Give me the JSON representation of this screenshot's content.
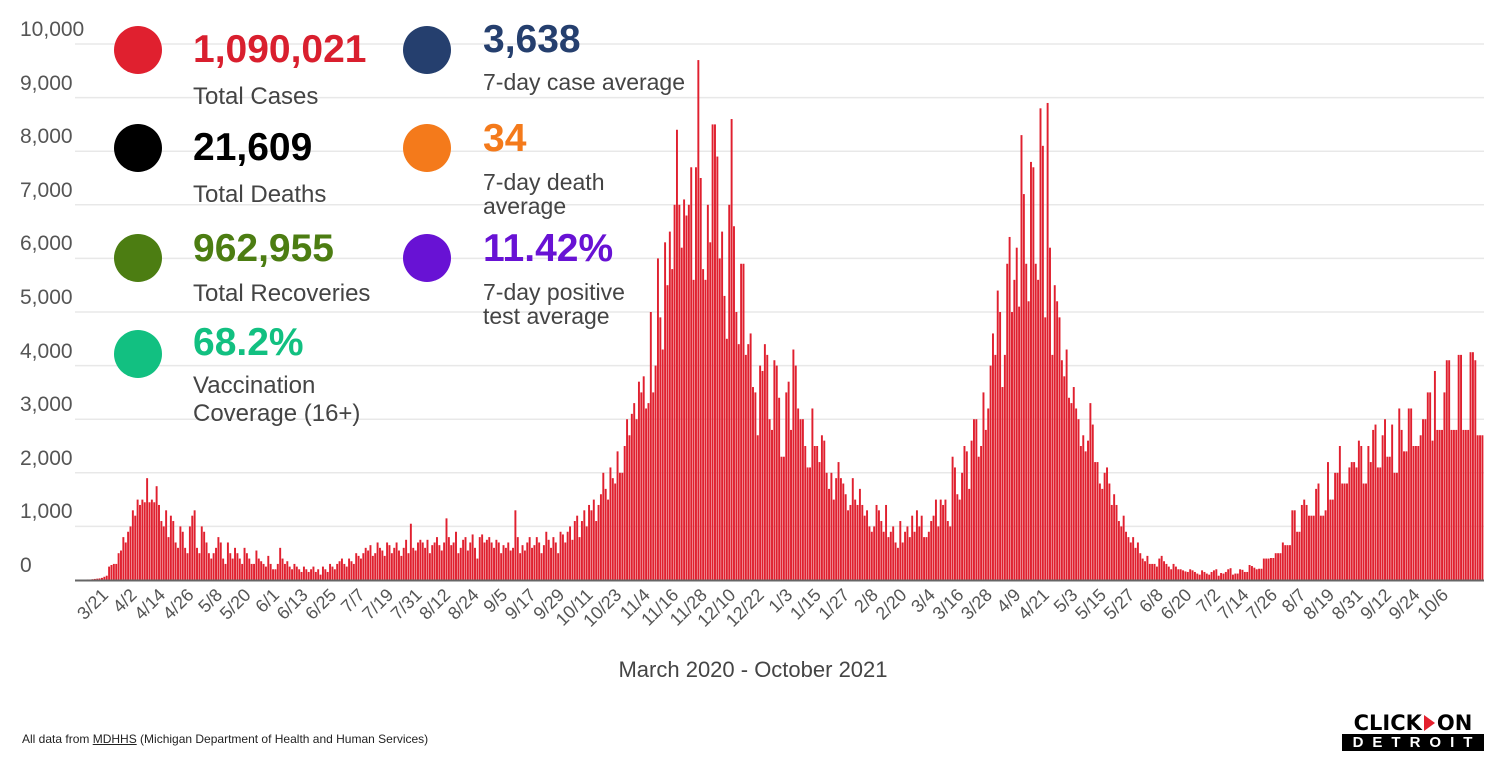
{
  "stats": {
    "total_cases": {
      "value": "1,090,021",
      "label": "Total Cases",
      "color": "#d91f2e"
    },
    "total_deaths": {
      "value": "21,609",
      "label": "Total Deaths",
      "color": "#000000"
    },
    "total_recoveries": {
      "value": "962,955",
      "label": "Total Recoveries",
      "color": "#4c7d12"
    },
    "vaccination": {
      "value": "68.2%",
      "label_line1": "Vaccination",
      "label_line2": "Coverage (16+)",
      "color": "#12c081"
    },
    "case_average": {
      "value": "3,638",
      "label": "7-day case average",
      "color": "#253f6e"
    },
    "death_average": {
      "value": "34",
      "label_line1": "7-day death",
      "label_line2": "average",
      "color": "#f47a1b"
    },
    "positive_average": {
      "value": "11.42%",
      "label_line1": "7-day positive",
      "label_line2": "test average",
      "color": "#6812d4"
    }
  },
  "chart_data": {
    "type": "bar",
    "bar_color": "#e0202f",
    "xlabel": "March 2020 - October 2021",
    "ylim": [
      0,
      10000
    ],
    "y_ticks": [
      "0",
      "1,000",
      "2,000",
      "3,000",
      "4,000",
      "5,000",
      "6,000",
      "7,000",
      "8,000",
      "9,000",
      "10,000"
    ],
    "grid": true,
    "values_before_first_tick": [
      0,
      0,
      10,
      10,
      15,
      20,
      25,
      30,
      40,
      60,
      80
    ],
    "blocks": [
      {
        "tick": "3/21",
        "values": [
          250,
          280,
          300,
          300,
          500,
          550,
          800,
          700,
          900,
          1000,
          1300,
          1200
        ]
      },
      {
        "tick": "4/2",
        "values": [
          1500,
          1400,
          1500,
          1450,
          1900,
          1450,
          1500,
          1450,
          1750,
          1400,
          1100,
          1000
        ]
      },
      {
        "tick": "4/14",
        "values": [
          1300,
          800,
          1200,
          1100,
          700,
          600,
          1000,
          900,
          600,
          500,
          1000,
          1200
        ]
      },
      {
        "tick": "4/26",
        "values": [
          1300,
          600,
          500,
          1000,
          900,
          700,
          500,
          400,
          500,
          600,
          800,
          700
        ]
      },
      {
        "tick": "5/8",
        "values": [
          400,
          300,
          700,
          500,
          400,
          600,
          500,
          400,
          300,
          600,
          500,
          400
        ]
      },
      {
        "tick": "5/20",
        "values": [
          300,
          300,
          550,
          400,
          350,
          300,
          250,
          450,
          300,
          200,
          200,
          300
        ]
      },
      {
        "tick": "6/1",
        "values": [
          600,
          400,
          300,
          350,
          250,
          200,
          300,
          250,
          200,
          150,
          250,
          200
        ]
      },
      {
        "tick": "6/13",
        "values": [
          150,
          200,
          250,
          150,
          200,
          100,
          250,
          200,
          150,
          300,
          250,
          200
        ]
      },
      {
        "tick": "6/25",
        "values": [
          300,
          350,
          400,
          300,
          250,
          400,
          350,
          300,
          500,
          450,
          400,
          500
        ]
      },
      {
        "tick": "7/7",
        "values": [
          600,
          550,
          650,
          450,
          500,
          700,
          600,
          550,
          450,
          700,
          650,
          500
        ]
      },
      {
        "tick": "7/19",
        "values": [
          600,
          700,
          550,
          450,
          600,
          750,
          500,
          1050,
          600,
          550,
          700,
          750
        ]
      },
      {
        "tick": "7/31",
        "values": [
          700,
          600,
          750,
          500,
          650,
          700,
          800,
          650,
          550,
          700,
          1150,
          800
        ]
      },
      {
        "tick": "8/12",
        "values": [
          650,
          700,
          900,
          500,
          600,
          750,
          800,
          550,
          700,
          850,
          600,
          400
        ]
      },
      {
        "tick": "8/24",
        "values": [
          800,
          850,
          700,
          750,
          800,
          700,
          600,
          750,
          700,
          500,
          650,
          600
        ]
      },
      {
        "tick": "9/5",
        "values": [
          700,
          550,
          600,
          1300,
          800,
          500,
          650,
          550,
          700,
          800,
          600,
          650
        ]
      },
      {
        "tick": "9/17",
        "values": [
          800,
          700,
          500,
          650,
          900,
          750,
          600,
          800,
          700,
          500,
          900,
          850
        ]
      },
      {
        "tick": "9/29",
        "values": [
          700,
          900,
          1000,
          750,
          1100,
          1200,
          800,
          1100,
          1300,
          1000,
          1400,
          1300
        ]
      },
      {
        "tick": "10/11",
        "values": [
          1500,
          1100,
          1400,
          1600,
          2000,
          1700,
          1500,
          2100,
          1900,
          1800,
          2400,
          2000
        ]
      },
      {
        "tick": "10/23",
        "values": [
          2000,
          2500,
          3000,
          2700,
          3100,
          3300,
          3000,
          3700,
          3500,
          3800,
          3200,
          3300
        ]
      },
      {
        "tick": "11/4",
        "values": [
          5000,
          3500,
          4000,
          6000,
          4900,
          4300,
          6300,
          5500,
          6500,
          5800,
          7000,
          8400
        ]
      },
      {
        "tick": "11/16",
        "values": [
          7000,
          6200,
          7100,
          6800,
          7000,
          7700,
          5600,
          7700,
          9700,
          7500,
          5800,
          5600
        ]
      },
      {
        "tick": "11/28",
        "values": [
          7000,
          6300,
          8500,
          8500,
          7900,
          6000,
          6500,
          5300,
          4500,
          7000,
          8600,
          6600
        ]
      },
      {
        "tick": "12/10",
        "values": [
          5000,
          4400,
          5900,
          5900,
          4200,
          4400,
          4600,
          3600,
          3500,
          2700,
          4000,
          3900
        ]
      },
      {
        "tick": "12/22",
        "values": [
          4400,
          4200,
          3000,
          2800,
          4100,
          4000,
          3400,
          2300,
          2300,
          3500,
          3700,
          2800
        ]
      },
      {
        "tick": "1/3",
        "values": [
          4300,
          4000,
          3200,
          3000,
          3000,
          2500,
          2100,
          2100,
          3200,
          2500,
          2500,
          2200
        ]
      },
      {
        "tick": "1/15",
        "values": [
          2700,
          2600,
          2000,
          1700,
          2000,
          1500,
          1900,
          2200,
          1900,
          1800,
          1600,
          1300
        ]
      },
      {
        "tick": "1/27",
        "values": [
          1400,
          1900,
          1500,
          1400,
          1700,
          1400,
          1200,
          1300,
          1000,
          900,
          1000,
          1400
        ]
      },
      {
        "tick": "2/8",
        "values": [
          1300,
          1100,
          900,
          1400,
          800,
          900,
          1000,
          700,
          600,
          1100,
          700,
          900
        ]
      },
      {
        "tick": "2/20",
        "values": [
          1000,
          800,
          1200,
          900,
          1300,
          1000,
          1200,
          800,
          800,
          900,
          1100,
          1200
        ]
      },
      {
        "tick": "3/4",
        "values": [
          1500,
          1000,
          1500,
          1400,
          1500,
          1100,
          1000,
          2300,
          2100,
          1600,
          1500,
          2000
        ]
      },
      {
        "tick": "3/16",
        "values": [
          2500,
          2400,
          1700,
          2600,
          3000,
          3000,
          2300,
          2500,
          3500,
          2800,
          3200,
          4000
        ]
      },
      {
        "tick": "3/28",
        "values": [
          4600,
          4200,
          5400,
          5000,
          3600,
          4200,
          5900,
          6400,
          5000,
          5600,
          6200,
          5100
        ]
      },
      {
        "tick": "4/9",
        "values": [
          8300,
          7200,
          5900,
          5200,
          7800,
          7700,
          5900,
          5600,
          8800,
          8100,
          4900,
          8900
        ]
      },
      {
        "tick": "4/21",
        "values": [
          6200,
          4200,
          5500,
          5200,
          4900,
          4100,
          3800,
          4300,
          3400,
          3300,
          3600,
          3200
        ]
      },
      {
        "tick": "5/3",
        "values": [
          3000,
          2500,
          2700,
          2400,
          2600,
          3300,
          2900,
          2200,
          2200,
          1800,
          1700,
          2000
        ]
      },
      {
        "tick": "5/15",
        "values": [
          2100,
          1800,
          1400,
          1600,
          1400,
          1100,
          1000,
          1200,
          900,
          800,
          700,
          800
        ]
      },
      {
        "tick": "5/27",
        "values": [
          600,
          700,
          500,
          400,
          350,
          450,
          300,
          300,
          300,
          250,
          400,
          450
        ]
      },
      {
        "tick": "6/8",
        "values": [
          350,
          300,
          250,
          200,
          300,
          250,
          200,
          200,
          180,
          160,
          150,
          200
        ]
      },
      {
        "tick": "6/20",
        "values": [
          180,
          150,
          120,
          100,
          180,
          150,
          120,
          100,
          150,
          180,
          200,
          80
        ]
      },
      {
        "tick": "7/2",
        "values": [
          130,
          120,
          150,
          200,
          220,
          100,
          120,
          120,
          200,
          190,
          150,
          150
        ]
      },
      {
        "tick": "7/14",
        "values": [
          280,
          260,
          230,
          200,
          210,
          210,
          400,
          400,
          400,
          410,
          410,
          500
        ]
      },
      {
        "tick": "7/26",
        "values": [
          500,
          500,
          700,
          650,
          650,
          650,
          1300,
          1300,
          900,
          900,
          1400,
          1500
        ]
      },
      {
        "tick": "8/7",
        "values": [
          1400,
          1200,
          1200,
          1200,
          1700,
          1800,
          1200,
          1200,
          1300,
          2200,
          1500,
          1500
        ]
      },
      {
        "tick": "8/19",
        "values": [
          2000,
          2000,
          2500,
          1800,
          1800,
          1800,
          2100,
          2200,
          2200,
          2100,
          2600,
          2500
        ]
      },
      {
        "tick": "8/31",
        "values": [
          1800,
          1800,
          2500,
          2200,
          2800,
          2900,
          2100,
          2100,
          2700,
          3000,
          2300,
          2300
        ]
      },
      {
        "tick": "9/12",
        "values": [
          2900,
          2000,
          2000,
          3200,
          2800,
          2400,
          2400,
          3200,
          3200,
          2500,
          2500,
          2500
        ]
      },
      {
        "tick": "9/24",
        "values": [
          2700,
          3000,
          3000,
          3500,
          3500,
          2600,
          3900,
          2800,
          2800,
          2800,
          3500,
          4100
        ]
      },
      {
        "tick": "10/6",
        "values": [
          4100,
          2800,
          2800,
          2800,
          4200,
          4200,
          2800,
          2800,
          2800,
          4250,
          4250,
          4100,
          2700,
          2700,
          2700
        ]
      }
    ]
  },
  "footer": {
    "prefix": "All data from ",
    "link": "MDHHS",
    "suffix": " (Michigan Department of Health and Human Services)"
  },
  "logo": {
    "top_left": "CLICK",
    "top_right": "ON",
    "bottom": "DETROIT"
  }
}
